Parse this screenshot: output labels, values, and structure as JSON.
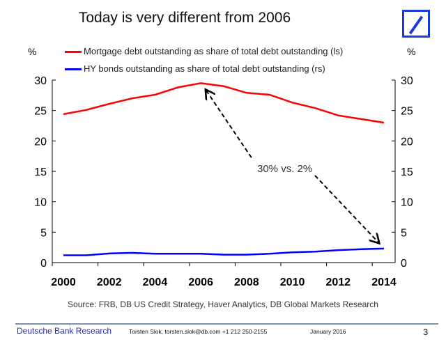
{
  "slide": {
    "title": "Today is very different from 2006",
    "logo": "deutsche-bank-logo",
    "source": "Source: FRB, DB US Credit Strategy, Haver  Analytics, DB Global Markets Research",
    "footer": {
      "brand": "Deutsche Bank Research",
      "contact": "Torsten Slok, torsten.slok@db.com  +1 212 250-2155",
      "date": "January 2016",
      "page": "3"
    }
  },
  "chart_data": {
    "type": "line",
    "title": "",
    "y_left_label": "%",
    "y_right_label": "%",
    "x": [
      2000,
      2001,
      2002,
      2003,
      2004,
      2005,
      2006,
      2007,
      2008,
      2009,
      2010,
      2011,
      2012,
      2013,
      2014
    ],
    "x_ticks": [
      "2000",
      "2002",
      "2004",
      "2006",
      "2008",
      "2010",
      "2012",
      "2014"
    ],
    "y_ticks": [
      "0",
      "5",
      "10",
      "15",
      "20",
      "25",
      "30"
    ],
    "ylim_left": [
      0,
      30
    ],
    "ylim_right": [
      0,
      30
    ],
    "grid": false,
    "legend_position": "top",
    "series": [
      {
        "name": "Mortgage debt outstanding as share of total debt outstanding (ls)",
        "axis": "left",
        "color": "#ff0000",
        "values": [
          24.4,
          25.1,
          26.1,
          27.0,
          27.6,
          28.8,
          29.5,
          29.0,
          27.9,
          27.6,
          26.3,
          25.4,
          24.2,
          23.6,
          23.0
        ]
      },
      {
        "name": "HY bonds outstanding as share of total debt outstanding (rs)",
        "axis": "right",
        "color": "#0000ff",
        "values": [
          1.2,
          1.2,
          1.5,
          1.6,
          1.45,
          1.45,
          1.45,
          1.3,
          1.3,
          1.45,
          1.7,
          1.8,
          2.05,
          2.2,
          2.3
        ]
      }
    ],
    "annotations": [
      {
        "text": "30% vs. 2%",
        "from_x": 2006,
        "to_x": 2014
      }
    ]
  }
}
